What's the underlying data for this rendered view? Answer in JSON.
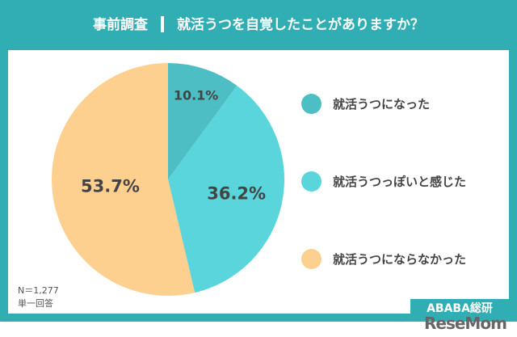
{
  "header": {
    "survey": "事前調査",
    "question": "就活うつを自覚したことがありますか？"
  },
  "chart_data": {
    "type": "pie",
    "title": "就活うつを自覚したことがありますか？",
    "labels": [
      "就活うつになった",
      "就活うつっぽいと感じた",
      "就活うつにならなかった"
    ],
    "values": [
      10.1,
      36.2,
      53.7
    ],
    "value_labels": [
      "10.1%",
      "36.2%",
      "53.7%"
    ],
    "colors": [
      "#4dbfc4",
      "#5ad5db",
      "#fdd08f"
    ],
    "legend": "right"
  },
  "notes": {
    "n": "N＝1,277",
    "type": "単一回答"
  },
  "brand": {
    "logo": "ABABA総研",
    "watermark": "ReseMom"
  }
}
